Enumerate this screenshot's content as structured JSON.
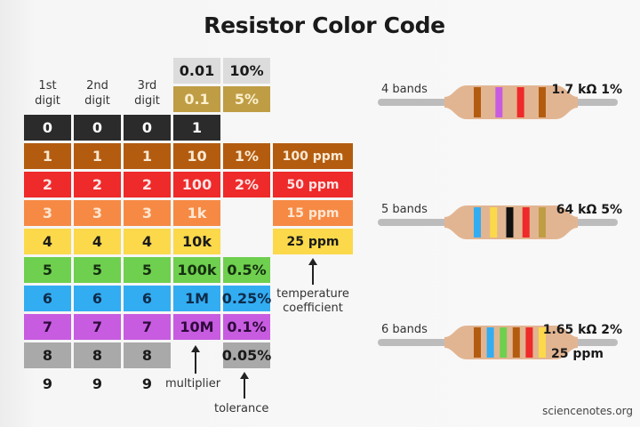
{
  "title": "Resistor Color Code",
  "headers": [
    "1st\ndigit",
    "2nd\ndigit",
    "3rd\ndigit"
  ],
  "header_lines": [
    [
      "1st",
      "digit"
    ],
    [
      "2nd",
      "digit"
    ],
    [
      "3rd",
      "digit"
    ]
  ],
  "rows": [
    {
      "color": "#2b2b2b",
      "fg": "#ffffff",
      "digits": [
        "0",
        "0",
        "0"
      ],
      "multiplier": "1",
      "tolerance": "",
      "tempco": ""
    },
    {
      "color": "#b35c10",
      "fg": "#fbe9d3",
      "digits": [
        "1",
        "1",
        "1"
      ],
      "multiplier": "10",
      "tolerance": "1%",
      "tempco": "100 ppm"
    },
    {
      "color": "#ee2a2a",
      "fg": "#fde3e3",
      "digits": [
        "2",
        "2",
        "2"
      ],
      "multiplier": "100",
      "tolerance": "2%",
      "tempco": "50 ppm"
    },
    {
      "color": "#f68a45",
      "fg": "#fde6d3",
      "digits": [
        "3",
        "3",
        "3"
      ],
      "multiplier": "1k",
      "tolerance": "",
      "tempco": "15 ppm"
    },
    {
      "color": "#fbd94a",
      "fg": "#1a1a1a",
      "digits": [
        "4",
        "4",
        "4"
      ],
      "multiplier": "10k",
      "tolerance": "",
      "tempco": "25 ppm"
    },
    {
      "color": "#6fcf4f",
      "fg": "#153010",
      "digits": [
        "5",
        "5",
        "5"
      ],
      "multiplier": "100k",
      "tolerance": "0.5%",
      "tempco": ""
    },
    {
      "color": "#33adf2",
      "fg": "#0e2c4a",
      "digits": [
        "6",
        "6",
        "6"
      ],
      "multiplier": "1M",
      "tolerance": "0.25%",
      "tempco": ""
    },
    {
      "color": "#c75ce0",
      "fg": "#2e0a3a",
      "digits": [
        "7",
        "7",
        "7"
      ],
      "multiplier": "10M",
      "tolerance": "0.1%",
      "tempco": ""
    },
    {
      "color": "#a9a9a9",
      "fg": "#1a1a1a",
      "digits": [
        "8",
        "8",
        "8"
      ],
      "multiplier": "",
      "tolerance": "0.05%",
      "tempco": ""
    },
    {
      "color": "",
      "fg": "#1a1a1a",
      "digits": [
        "9",
        "9",
        "9"
      ],
      "multiplier": "",
      "tolerance": "",
      "tempco": ""
    }
  ],
  "silver": {
    "color": "#dcdcdc",
    "fg": "#1a1a1a",
    "multiplier": "0.01",
    "tolerance": "10%"
  },
  "gold": {
    "color": "#bf9d45",
    "fg": "#fbf0cf",
    "multiplier": "0.1",
    "tolerance": "5%"
  },
  "labels": {
    "multiplier": "multiplier",
    "tolerance": "tolerance",
    "tempco_line1": "temperature",
    "tempco_line2": "coefficient"
  },
  "examples": [
    {
      "label": "4 bands",
      "value": "1.7 kΩ 1%",
      "value2": "",
      "bands": [
        "#b35c10",
        "#c75ce0",
        "#ee2a2a",
        "#b35c10"
      ]
    },
    {
      "label": "5 bands",
      "value": "64 kΩ 5%",
      "value2": "",
      "bands": [
        "#33adf2",
        "#fbd94a",
        "#111111",
        "#ee2a2a",
        "#bf9d45"
      ]
    },
    {
      "label": "6 bands",
      "value": "1.65 kΩ 2%",
      "value2": "25 ppm",
      "bands": [
        "#b35c10",
        "#33adf2",
        "#6fcf4f",
        "#b35c10",
        "#ee2a2a",
        "#fbd94a"
      ]
    }
  ],
  "credit": "sciencenotes.org"
}
